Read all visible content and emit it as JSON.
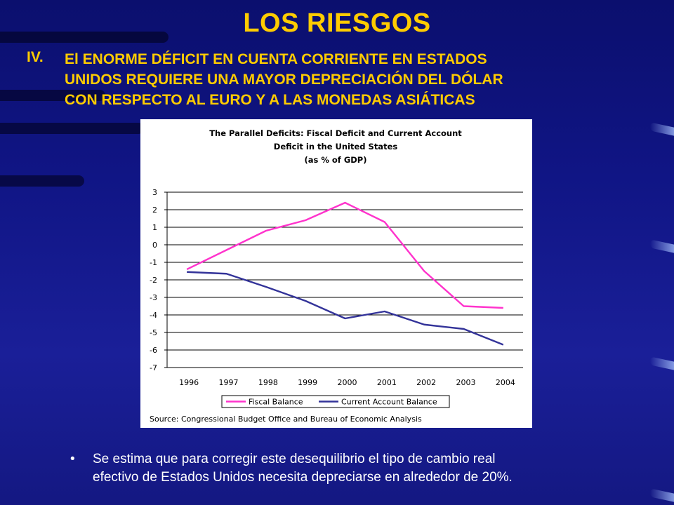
{
  "slide": {
    "title": "LOS RIESGOS",
    "heading_number": "IV.",
    "heading_lines": [
      "El ENORME DÉFICIT EN CUENTA CORRIENTE EN ESTADOS",
      "UNIDOS REQUIERE UNA MAYOR DEPRECIACIÓN DEL DÓLAR",
      "CON RESPECTO AL EURO Y A LAS MONEDAS ASIÁTICAS"
    ],
    "bullet_lines": [
      "Se estima que para corregir este desequilibrio el tipo de cambio real",
      "efectivo de Estados Unidos necesita depreciarse en alrededor de 20%."
    ],
    "bullet_symbol": "•"
  },
  "chart_data": {
    "type": "line",
    "title_lines": [
      "The Parallel Deficits: Fiscal Deficit and Current Account",
      "Deficit in the United States",
      "(as % of GDP)"
    ],
    "categories": [
      "1996",
      "1997",
      "1998",
      "1999",
      "2000",
      "2001",
      "2002",
      "2003",
      "2004"
    ],
    "yticks": [
      "3",
      "2",
      "1",
      "0",
      "-1",
      "-2",
      "-3",
      "-4",
      "-5",
      "-6",
      "-7"
    ],
    "ylim": [
      -7,
      3
    ],
    "grid": true,
    "legend_position": "bottom",
    "series": [
      {
        "name": "Fiscal Balance",
        "color": "#ff33cc",
        "values": [
          -1.4,
          -0.3,
          0.8,
          1.4,
          2.4,
          1.3,
          -1.5,
          -3.5,
          -3.6
        ]
      },
      {
        "name": "Current Account Balance",
        "color": "#333399",
        "values": [
          -1.55,
          -1.65,
          -2.4,
          -3.2,
          -4.2,
          -3.8,
          -4.55,
          -4.8,
          -5.7
        ]
      }
    ],
    "source": "Source: Congressional Budget Office and Bureau of Economic Analysis"
  }
}
